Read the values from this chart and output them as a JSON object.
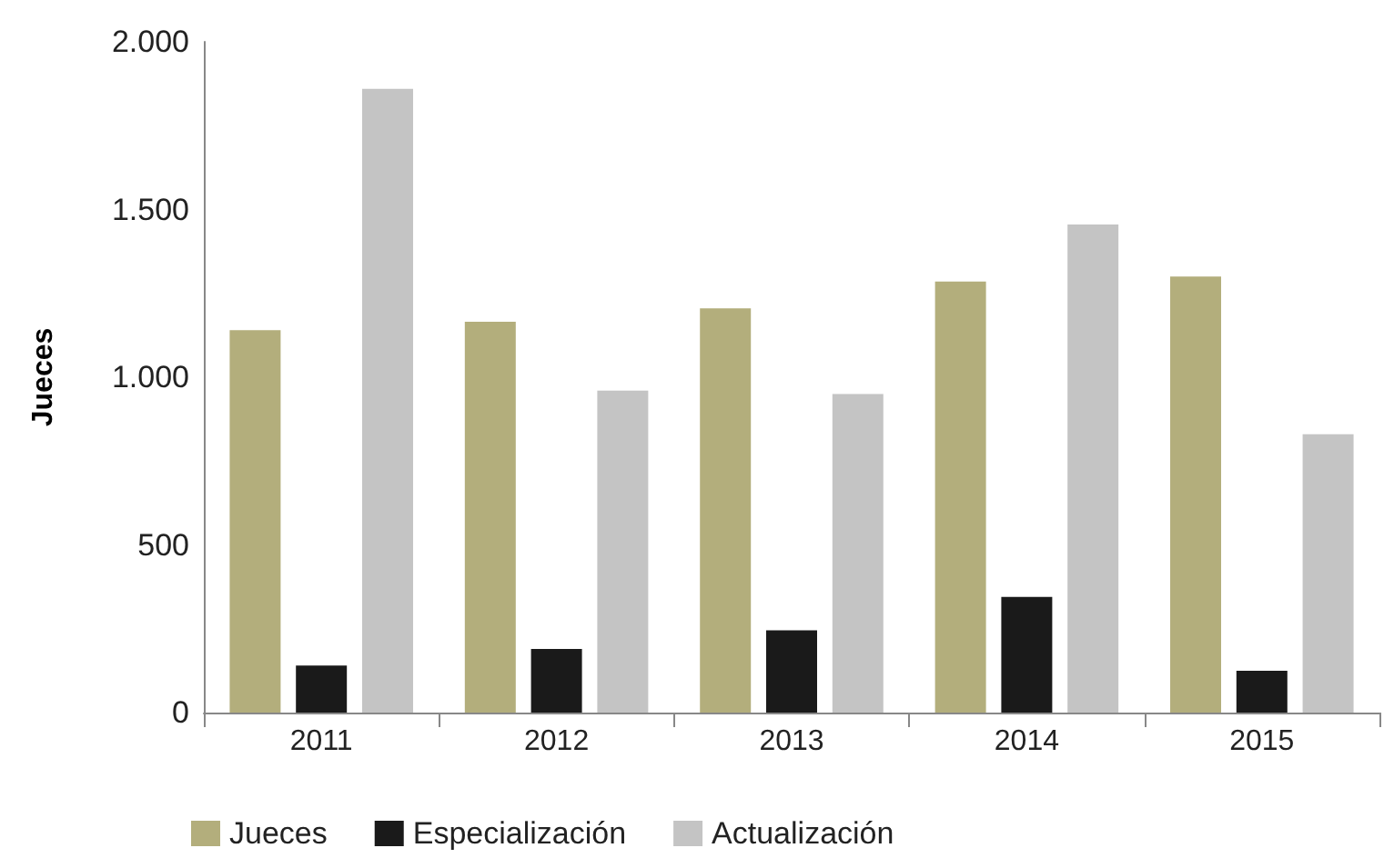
{
  "chart_data": {
    "type": "bar",
    "ylabel": "Jueces",
    "categories": [
      "2011",
      "2012",
      "2013",
      "2014",
      "2015"
    ],
    "series": [
      {
        "name": "Jueces",
        "color": "#b3ae7c",
        "values": [
          1140,
          1165,
          1205,
          1285,
          1300
        ]
      },
      {
        "name": "Especialización",
        "color": "#1a1a1a",
        "values": [
          140,
          190,
          245,
          345,
          125
        ]
      },
      {
        "name": "Actualización",
        "color": "#c4c4c4",
        "values": [
          1860,
          960,
          950,
          1455,
          830
        ]
      }
    ],
    "ylim": [
      0,
      2000
    ],
    "yticks": [
      0,
      500,
      {
        "value": 1000,
        "label": "1.000"
      },
      {
        "value": 1500,
        "label": "1.500"
      },
      {
        "value": 2000,
        "label": "2.000"
      }
    ],
    "grid": false,
    "legend": "bottom left"
  }
}
